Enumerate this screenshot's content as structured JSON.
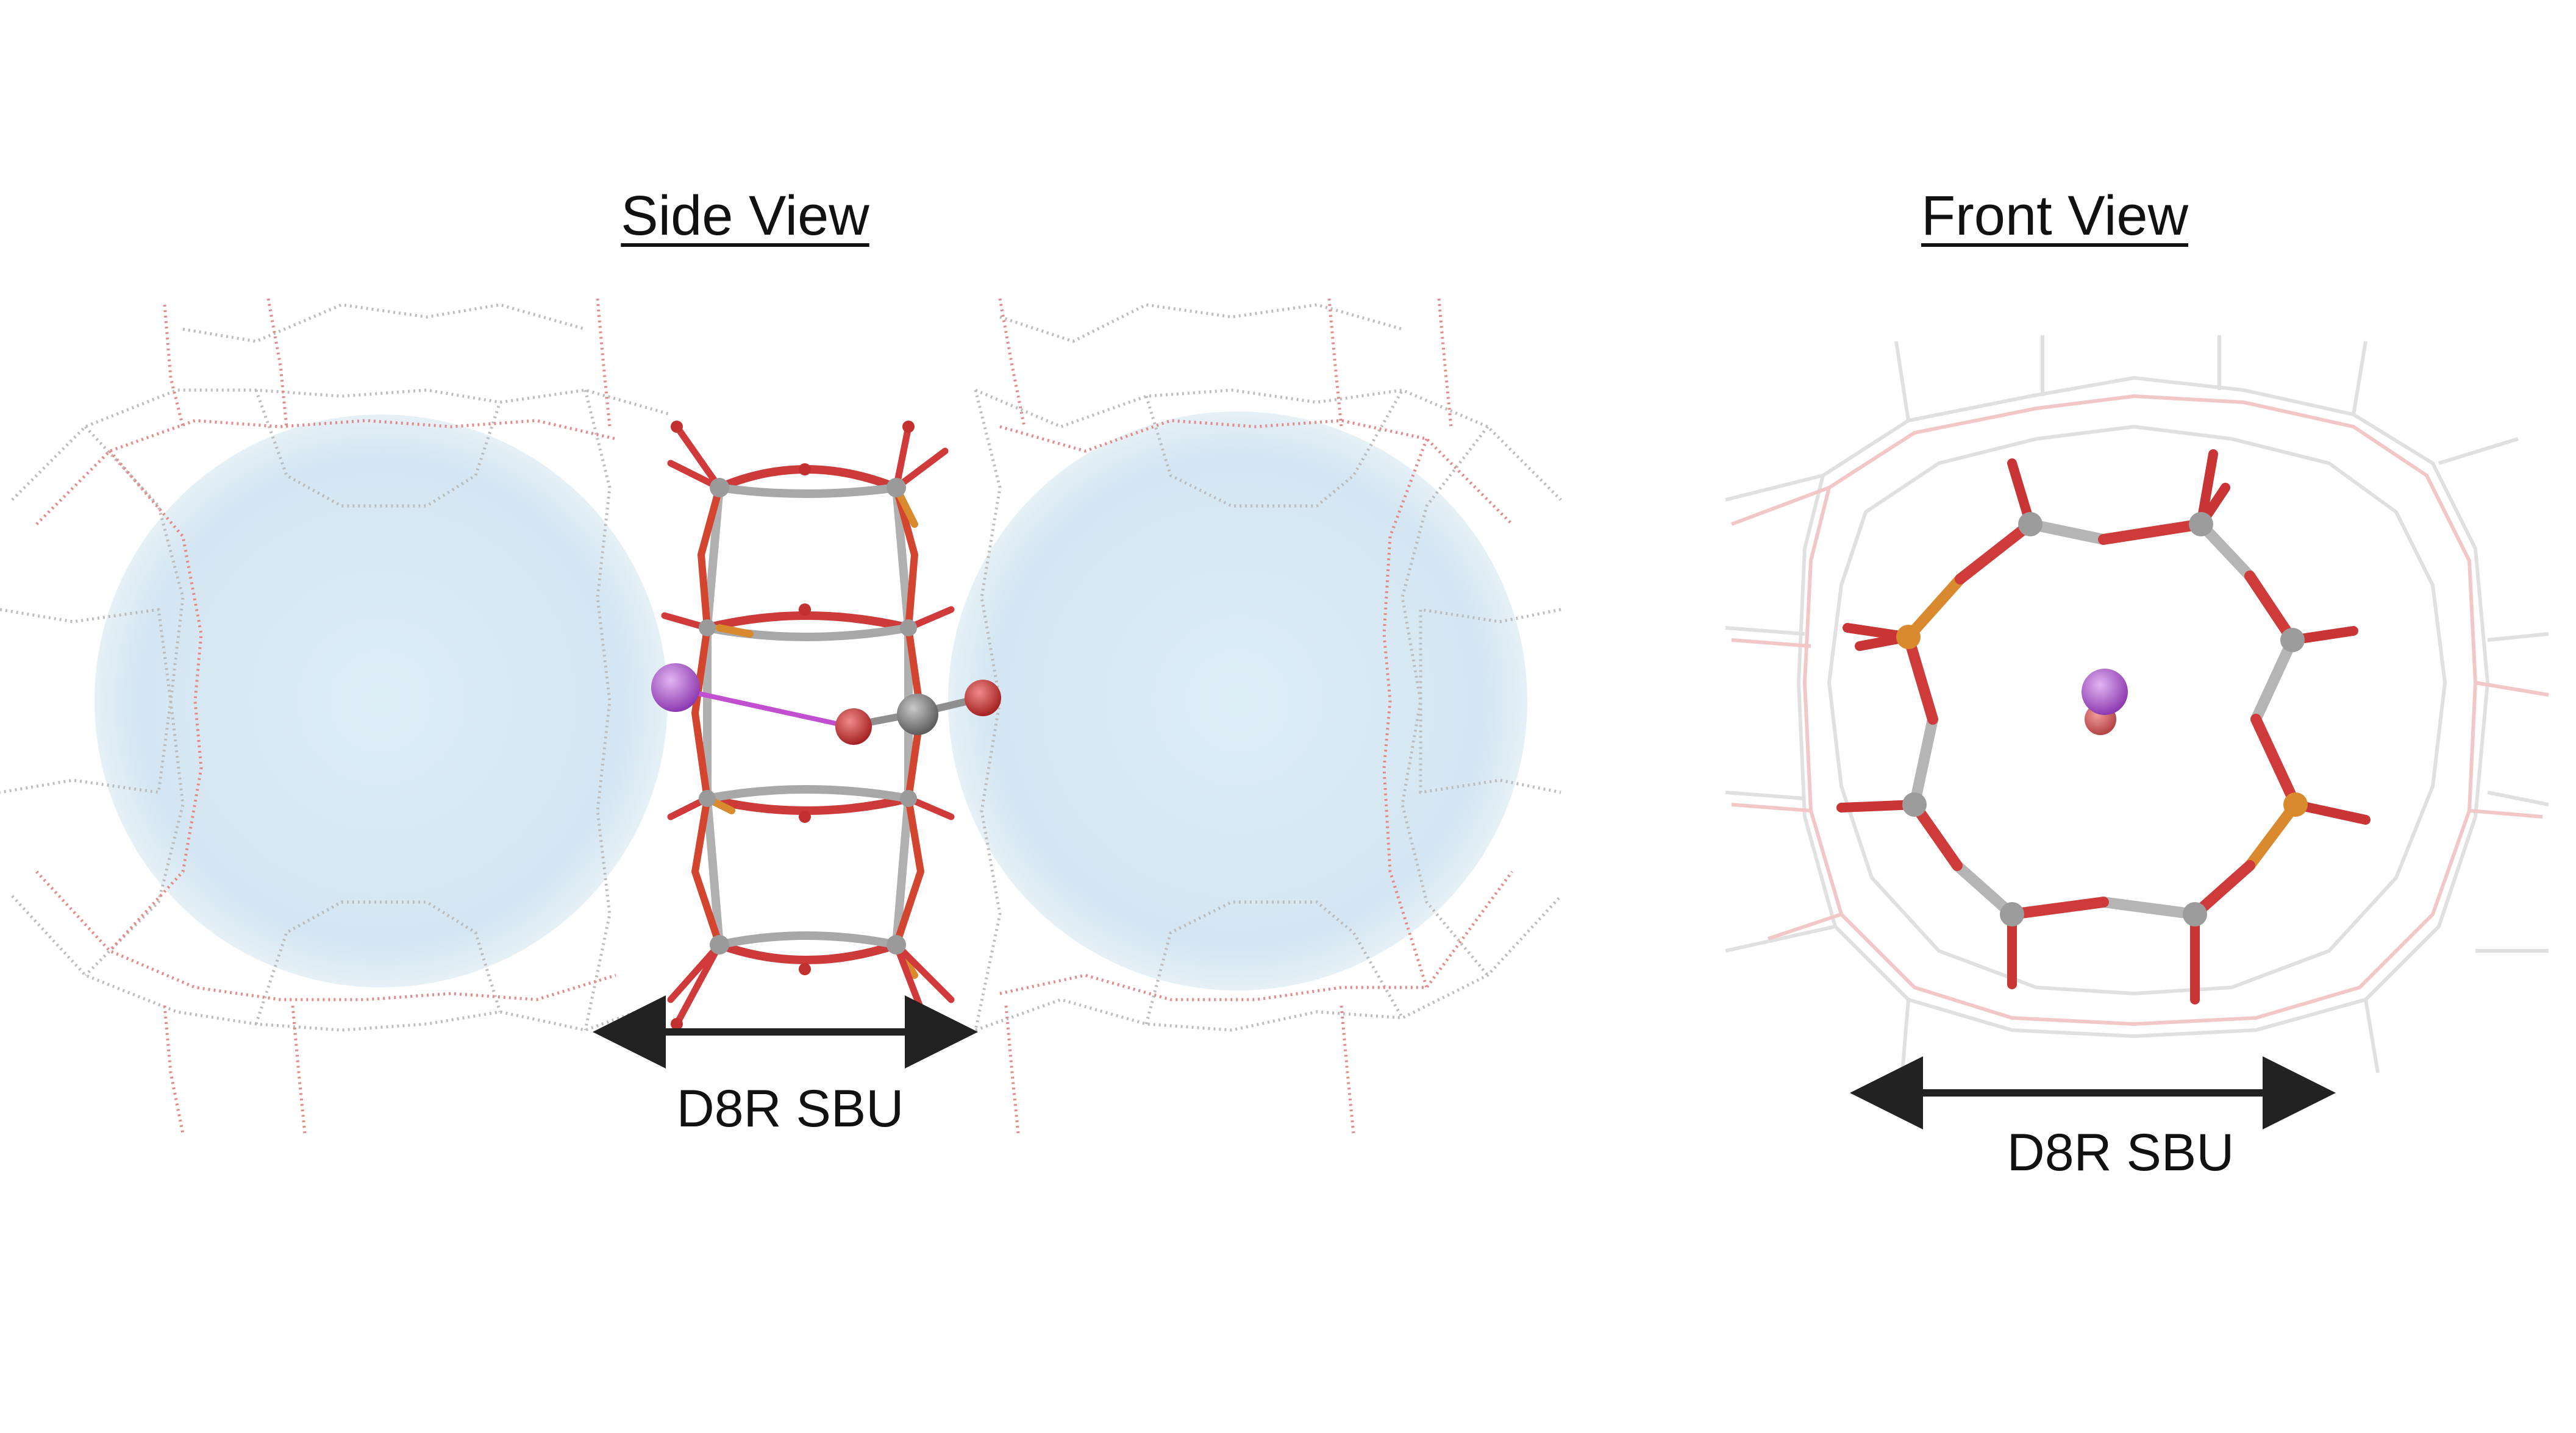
{
  "panels": [
    {
      "title": "Side View",
      "dimension_label": "D8R SBU"
    },
    {
      "title": "Front View",
      "dimension_label": "D8R SBU"
    }
  ],
  "colors": {
    "pore_sphere": "#cfe3f1",
    "framework_grey": "#b9b9b9",
    "framework_red": "#e06a6a",
    "oxygen": "#d23b3b",
    "carbon": "#8f8f8f",
    "phosphorus": "#d98a2f",
    "cation": "#b35fd6",
    "arrow": "#222222"
  }
}
